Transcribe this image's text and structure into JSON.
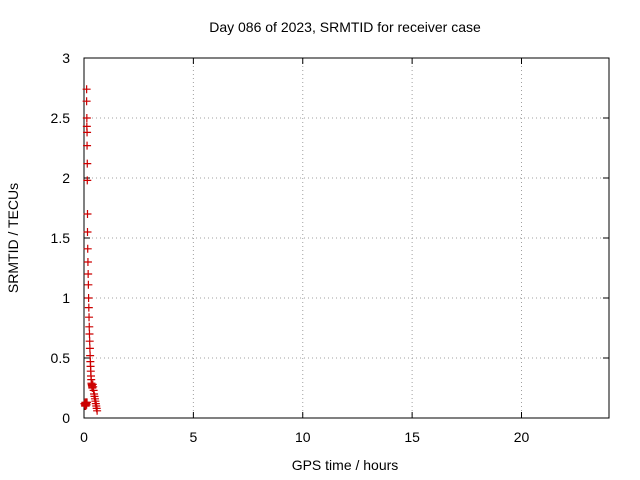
{
  "chart_data": {
    "type": "scatter",
    "title": "Day 086 of 2023, SRMTID for receiver case",
    "xlabel": "GPS time / hours",
    "ylabel": "SRMTID / TECUs",
    "xlim": [
      0,
      24
    ],
    "ylim": [
      0,
      3
    ],
    "xticks": [
      0,
      5,
      10,
      15,
      20
    ],
    "xtick_labels": [
      "0",
      "5",
      "10",
      "15",
      "20"
    ],
    "yticks": [
      0,
      0.5,
      1,
      1.5,
      2,
      2.5,
      3
    ],
    "ytick_labels": [
      "0",
      "0.5",
      "1",
      "1.5",
      "2",
      "2.5",
      "3"
    ],
    "grid": true,
    "marker": "+",
    "color": "#cc0000",
    "series": [
      {
        "name": "SRMTID",
        "x": [
          0.02,
          0.04,
          0.06,
          0.08,
          0.1,
          0.12,
          0.14,
          0.05,
          0.07,
          0.09,
          0.11,
          0.12,
          0.12,
          0.13,
          0.13,
          0.14,
          0.14,
          0.15,
          0.15,
          0.16,
          0.16,
          0.17,
          0.18,
          0.19,
          0.2,
          0.21,
          0.22,
          0.23,
          0.24,
          0.25,
          0.26,
          0.27,
          0.28,
          0.29,
          0.3,
          0.31,
          0.32,
          0.33,
          0.34,
          0.35,
          0.36,
          0.37,
          0.38,
          0.4,
          0.42,
          0.44,
          0.46,
          0.48,
          0.5,
          0.52,
          0.54,
          0.56,
          0.58,
          0.6
        ],
        "y": [
          0.12,
          0.11,
          0.13,
          0.1,
          0.12,
          0.11,
          0.13,
          0.1,
          0.12,
          0.11,
          0.13,
          2.74,
          2.64,
          2.5,
          2.43,
          2.38,
          2.27,
          2.12,
          1.98,
          1.7,
          1.55,
          1.41,
          1.3,
          1.2,
          1.11,
          1.0,
          0.92,
          0.84,
          0.76,
          0.7,
          0.64,
          0.58,
          0.52,
          0.47,
          0.43,
          0.39,
          0.35,
          0.32,
          0.29,
          0.28,
          0.27,
          0.26,
          0.25,
          0.28,
          0.26,
          0.23,
          0.2,
          0.18,
          0.16,
          0.14,
          0.12,
          0.1,
          0.08,
          0.06
        ]
      }
    ]
  }
}
